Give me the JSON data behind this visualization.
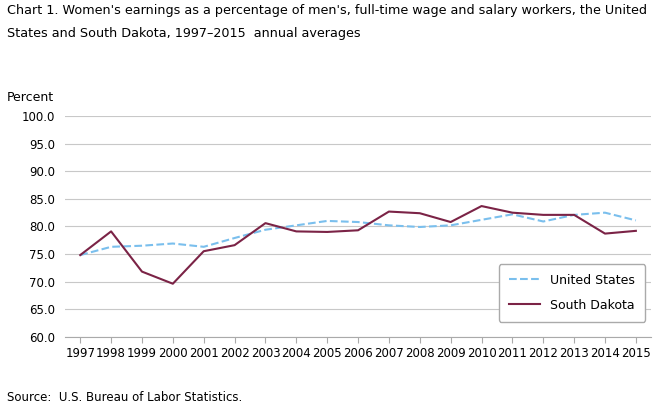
{
  "years": [
    1997,
    1998,
    1999,
    2000,
    2001,
    2002,
    2003,
    2004,
    2005,
    2006,
    2007,
    2008,
    2009,
    2010,
    2011,
    2012,
    2013,
    2014,
    2015
  ],
  "us_values": [
    74.8,
    76.3,
    76.5,
    76.9,
    76.3,
    77.9,
    79.4,
    80.2,
    81.0,
    80.8,
    80.2,
    79.9,
    80.2,
    81.2,
    82.2,
    80.9,
    82.1,
    82.5,
    81.1
  ],
  "sd_values": [
    74.8,
    79.1,
    71.8,
    69.6,
    75.5,
    76.6,
    80.6,
    79.1,
    79.0,
    79.3,
    82.7,
    82.4,
    80.8,
    83.7,
    82.5,
    82.1,
    82.1,
    78.7,
    79.2
  ],
  "us_color": "#7abfed",
  "sd_color": "#7b2346",
  "ylim": [
    60.0,
    100.0
  ],
  "yticks": [
    60.0,
    65.0,
    70.0,
    75.0,
    80.0,
    85.0,
    90.0,
    95.0,
    100.0
  ],
  "ylabel": "Percent",
  "title_line1": "Chart 1. Women's earnings as a percentage of men's, full-time wage and salary workers, the United",
  "title_line2": "States and South Dakota, 1997–2015  annual averages",
  "source": "Source:  U.S. Bureau of Labor Statistics.",
  "legend_us": "United States",
  "legend_sd": "South Dakota",
  "title_fontsize": 9.2,
  "axis_fontsize": 9,
  "tick_fontsize": 8.5,
  "source_fontsize": 8.5,
  "background_color": "#ffffff",
  "grid_color": "#c8c8c8"
}
